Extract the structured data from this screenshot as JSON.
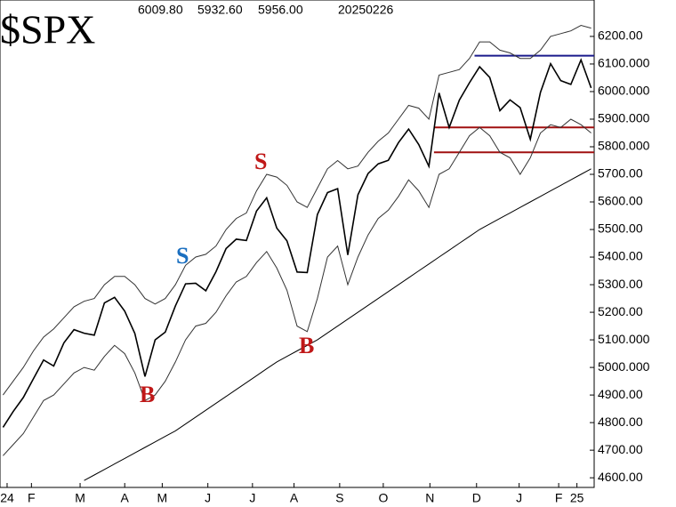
{
  "chart_data": {
    "type": "line",
    "title": "$SPX",
    "header_values": [
      "6009.80",
      "5932.60",
      "5956.00",
      "20250226"
    ],
    "xlim": [
      -0.3,
      58.3
    ],
    "ylim": [
      4565,
      6332
    ],
    "xticks": [
      {
        "value": 0.4,
        "label": "24"
      },
      {
        "value": 2.8,
        "label": "F"
      },
      {
        "value": 7.6,
        "label": "M"
      },
      {
        "value": 12,
        "label": "A"
      },
      {
        "value": 15.7,
        "label": "M"
      },
      {
        "value": 20.2,
        "label": "J"
      },
      {
        "value": 24.6,
        "label": "J"
      },
      {
        "value": 28.7,
        "label": "A"
      },
      {
        "value": 33.2,
        "label": "S"
      },
      {
        "value": 37.5,
        "label": "O"
      },
      {
        "value": 42.1,
        "label": "N"
      },
      {
        "value": 46.7,
        "label": "D"
      },
      {
        "value": 50.9,
        "label": "J"
      },
      {
        "value": 54.8,
        "label": "F"
      },
      {
        "value": 56.6,
        "label": "25"
      }
    ],
    "yticks": [
      {
        "value": 6200,
        "label": "6200.00"
      },
      {
        "value": 6100,
        "label": "6100.000"
      },
      {
        "value": 6000,
        "label": "6000.000"
      },
      {
        "value": 5900,
        "label": "5900.000"
      },
      {
        "value": 5800,
        "label": "5800.000"
      },
      {
        "value": 5700,
        "label": "5700.00"
      },
      {
        "value": 5600,
        "label": "5600.00"
      },
      {
        "value": 5500,
        "label": "5500.00"
      },
      {
        "value": 5400,
        "label": "5400.00"
      },
      {
        "value": 5300,
        "label": "5300.00"
      },
      {
        "value": 5200,
        "label": "5200.00"
      },
      {
        "value": 5100,
        "label": "5100.000"
      },
      {
        "value": 5000,
        "label": "5000.000"
      },
      {
        "value": 4900,
        "label": "4900.00"
      },
      {
        "value": 4800,
        "label": "4800.00"
      },
      {
        "value": 4700,
        "label": "4700.00"
      },
      {
        "value": 4600,
        "label": "4600.00"
      }
    ],
    "series": [
      {
        "color": "#000000",
        "values": [
          4783,
          4840,
          4891,
          4959,
          5027,
          5005,
          5089,
          5137,
          5124,
          5117,
          5234,
          5254,
          5204,
          5123,
          4967,
          5100,
          5128,
          5223,
          5303,
          5305,
          5278,
          5347,
          5431,
          5465,
          5460,
          5567,
          5615,
          5505,
          5459,
          5346,
          5344,
          5554,
          5634,
          5648,
          5408,
          5626,
          5703,
          5738,
          5751,
          5815,
          5864,
          5808,
          5729,
          5995,
          5870,
          5969,
          6032,
          6090,
          6051,
          5931,
          5970,
          5942,
          5827,
          5997,
          6101,
          6040,
          6026,
          6115,
          6013
        ]
      },
      {
        "color": "#333333",
        "values": [
          4900,
          4950,
          5000,
          5060,
          5110,
          5140,
          5180,
          5220,
          5240,
          5250,
          5300,
          5330,
          5330,
          5300,
          5250,
          5230,
          5250,
          5300,
          5370,
          5400,
          5410,
          5440,
          5500,
          5540,
          5560,
          5640,
          5700,
          5690,
          5660,
          5600,
          5580,
          5650,
          5720,
          5750,
          5720,
          5730,
          5780,
          5820,
          5850,
          5900,
          5950,
          5940,
          5900,
          6060,
          6070,
          6080,
          6120,
          6180,
          6180,
          6150,
          6140,
          6120,
          6120,
          6150,
          6200,
          6210,
          6220,
          6240,
          6230
        ]
      },
      {
        "color": "#333333",
        "values": [
          4680,
          4720,
          4760,
          4820,
          4880,
          4900,
          4940,
          4980,
          5000,
          4990,
          5040,
          5080,
          5050,
          4980,
          4880,
          4900,
          4950,
          5020,
          5100,
          5150,
          5160,
          5200,
          5260,
          5310,
          5330,
          5380,
          5420,
          5360,
          5280,
          5150,
          5130,
          5250,
          5400,
          5440,
          5300,
          5400,
          5480,
          5540,
          5570,
          5620,
          5680,
          5640,
          5580,
          5700,
          5720,
          5780,
          5840,
          5870,
          5840,
          5780,
          5760,
          5700,
          5760,
          5850,
          5880,
          5870,
          5900,
          5880,
          5850
        ]
      },
      {
        "color": "#000000",
        "values": [
          null,
          null,
          null,
          null,
          null,
          null,
          null,
          null,
          4590,
          4610,
          4630,
          4650,
          4670,
          4690,
          4710,
          4730,
          4750,
          4770,
          4795,
          4820,
          4845,
          4870,
          4895,
          4920,
          4945,
          4970,
          4995,
          5020,
          5040,
          5060,
          5080,
          5100,
          5125,
          5150,
          5175,
          5200,
          5225,
          5250,
          5275,
          5300,
          5325,
          5350,
          5375,
          5400,
          5425,
          5450,
          5475,
          5500,
          5520,
          5540,
          5560,
          5580,
          5600,
          5620,
          5640,
          5660,
          5680,
          5700,
          5720
        ]
      }
    ],
    "hlines": [
      {
        "value": 6130,
        "start": 46.5,
        "color": "#1a1a8c"
      },
      {
        "value": 5870,
        "start": 42.5,
        "color": "#a01010"
      },
      {
        "value": 5780,
        "start": 42.5,
        "color": "#a01010"
      }
    ],
    "annotations": [
      {
        "text": "S",
        "color": "#c01818"
      },
      {
        "text": "S",
        "color": "#1a6fc0"
      },
      {
        "text": "B",
        "color": "#c01818"
      },
      {
        "text": "B",
        "color": "#c01818"
      }
    ]
  }
}
